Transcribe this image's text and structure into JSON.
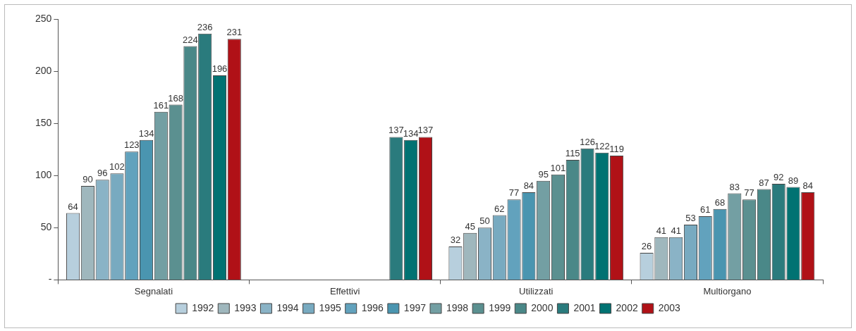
{
  "chart_data": {
    "type": "bar",
    "categories": [
      "Segnalati",
      "Effettivi",
      "Utilizzati",
      "Multiorgano"
    ],
    "series": [
      {
        "name": "1992",
        "color": "#b7cfdd",
        "values": [
          64,
          null,
          32,
          26
        ]
      },
      {
        "name": "1993",
        "color": "#9fb7bd",
        "values": [
          90,
          null,
          45,
          41
        ]
      },
      {
        "name": "1994",
        "color": "#8ab3c6",
        "values": [
          96,
          null,
          50,
          41
        ]
      },
      {
        "name": "1995",
        "color": "#78aac0",
        "values": [
          102,
          null,
          62,
          53
        ]
      },
      {
        "name": "1996",
        "color": "#62a2bd",
        "values": [
          123,
          null,
          77,
          61
        ]
      },
      {
        "name": "1997",
        "color": "#4a95b0",
        "values": [
          134,
          null,
          84,
          68
        ]
      },
      {
        "name": "1998",
        "color": "#739fa3",
        "values": [
          161,
          null,
          95,
          83
        ]
      },
      {
        "name": "1999",
        "color": "#5b9090",
        "values": [
          168,
          null,
          101,
          77
        ]
      },
      {
        "name": "2000",
        "color": "#4a8888",
        "values": [
          224,
          null,
          115,
          87
        ]
      },
      {
        "name": "2001",
        "color": "#2a7b7d",
        "values": [
          236,
          137,
          126,
          92
        ]
      },
      {
        "name": "2002",
        "color": "#017272",
        "values": [
          196,
          134,
          122,
          89
        ]
      },
      {
        "name": "2003",
        "color": "#b01117",
        "values": [
          231,
          137,
          119,
          84
        ]
      }
    ],
    "ylim": [
      0,
      250
    ],
    "yticks": [
      {
        "value": 0,
        "label": "-"
      },
      50,
      100,
      150,
      200,
      250
    ],
    "grid": false,
    "legend": "bottom",
    "data_labels": true
  }
}
